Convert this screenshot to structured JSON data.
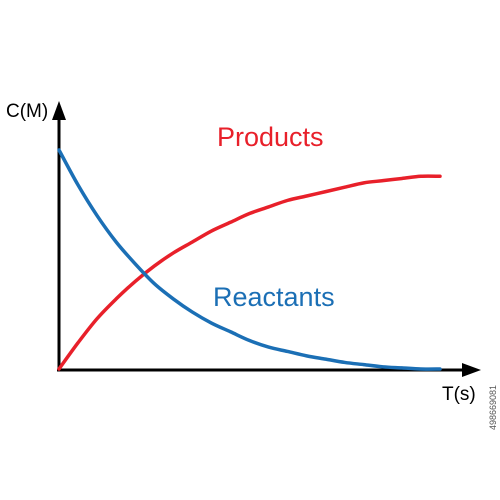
{
  "chart_data": {
    "type": "line",
    "title": "",
    "xlabel": "T(s)",
    "ylabel": "C(M)",
    "xlim": [
      0,
      10
    ],
    "ylim": [
      0,
      1
    ],
    "grid": false,
    "legend": "inline",
    "x": [
      0,
      0.5,
      1,
      1.5,
      2,
      2.5,
      3,
      3.5,
      4,
      4.5,
      5,
      5.5,
      6,
      6.5,
      7,
      7.5,
      8,
      8.5,
      9,
      9.5,
      10
    ],
    "series": [
      {
        "name": "Products",
        "color": "#e8202a",
        "values": [
          0,
          0.12,
          0.23,
          0.32,
          0.4,
          0.47,
          0.53,
          0.58,
          0.63,
          0.67,
          0.71,
          0.74,
          0.77,
          0.79,
          0.81,
          0.83,
          0.85,
          0.86,
          0.87,
          0.88,
          0.88
        ]
      },
      {
        "name": "Reactants",
        "color": "#1b6fb5",
        "values": [
          1,
          0.84,
          0.7,
          0.58,
          0.48,
          0.39,
          0.32,
          0.26,
          0.21,
          0.17,
          0.13,
          0.1,
          0.08,
          0.06,
          0.045,
          0.03,
          0.02,
          0.01,
          0.005,
          0,
          0
        ]
      }
    ]
  },
  "colors": {
    "axis": "#000000",
    "products": "#e8202a",
    "reactants": "#1b6fb5"
  },
  "stock_id": "498669081"
}
